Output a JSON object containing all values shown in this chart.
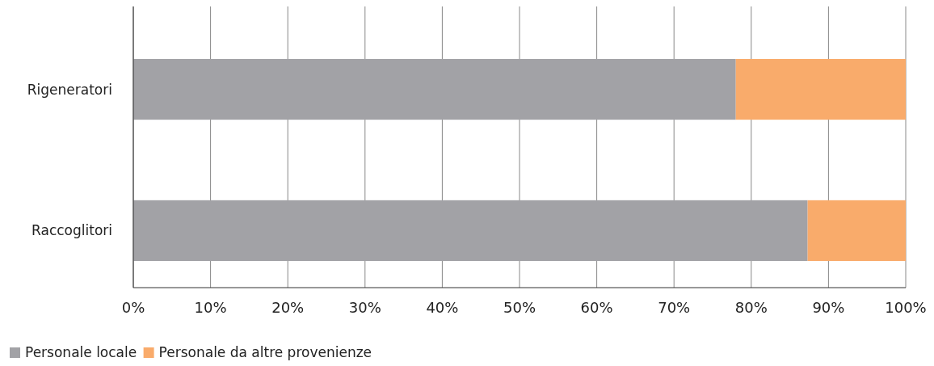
{
  "chart_data": {
    "type": "bar",
    "orientation": "horizontal",
    "stacked": true,
    "categories": [
      "Rigeneratori",
      "Raccoglitori"
    ],
    "series": [
      {
        "name": "Personale locale",
        "color": "#a2a2a6",
        "values": [
          78,
          87.3
        ]
      },
      {
        "name": "Personale da altre provenienze",
        "color": "#f9ab6b",
        "values": [
          22,
          12.7
        ]
      }
    ],
    "xlim": [
      0,
      100
    ],
    "xticks": [
      {
        "value": 0,
        "label": "0%"
      },
      {
        "value": 10,
        "label": "10%"
      },
      {
        "value": 20,
        "label": "20%"
      },
      {
        "value": 30,
        "label": "30%"
      },
      {
        "value": 40,
        "label": "40%"
      },
      {
        "value": 50,
        "label": "50%"
      },
      {
        "value": 60,
        "label": "60%"
      },
      {
        "value": 70,
        "label": "70%"
      },
      {
        "value": 80,
        "label": "80%"
      },
      {
        "value": 90,
        "label": "90%"
      },
      {
        "value": 100,
        "label": "100%"
      }
    ],
    "grid": "x",
    "legend": "bottom left"
  }
}
